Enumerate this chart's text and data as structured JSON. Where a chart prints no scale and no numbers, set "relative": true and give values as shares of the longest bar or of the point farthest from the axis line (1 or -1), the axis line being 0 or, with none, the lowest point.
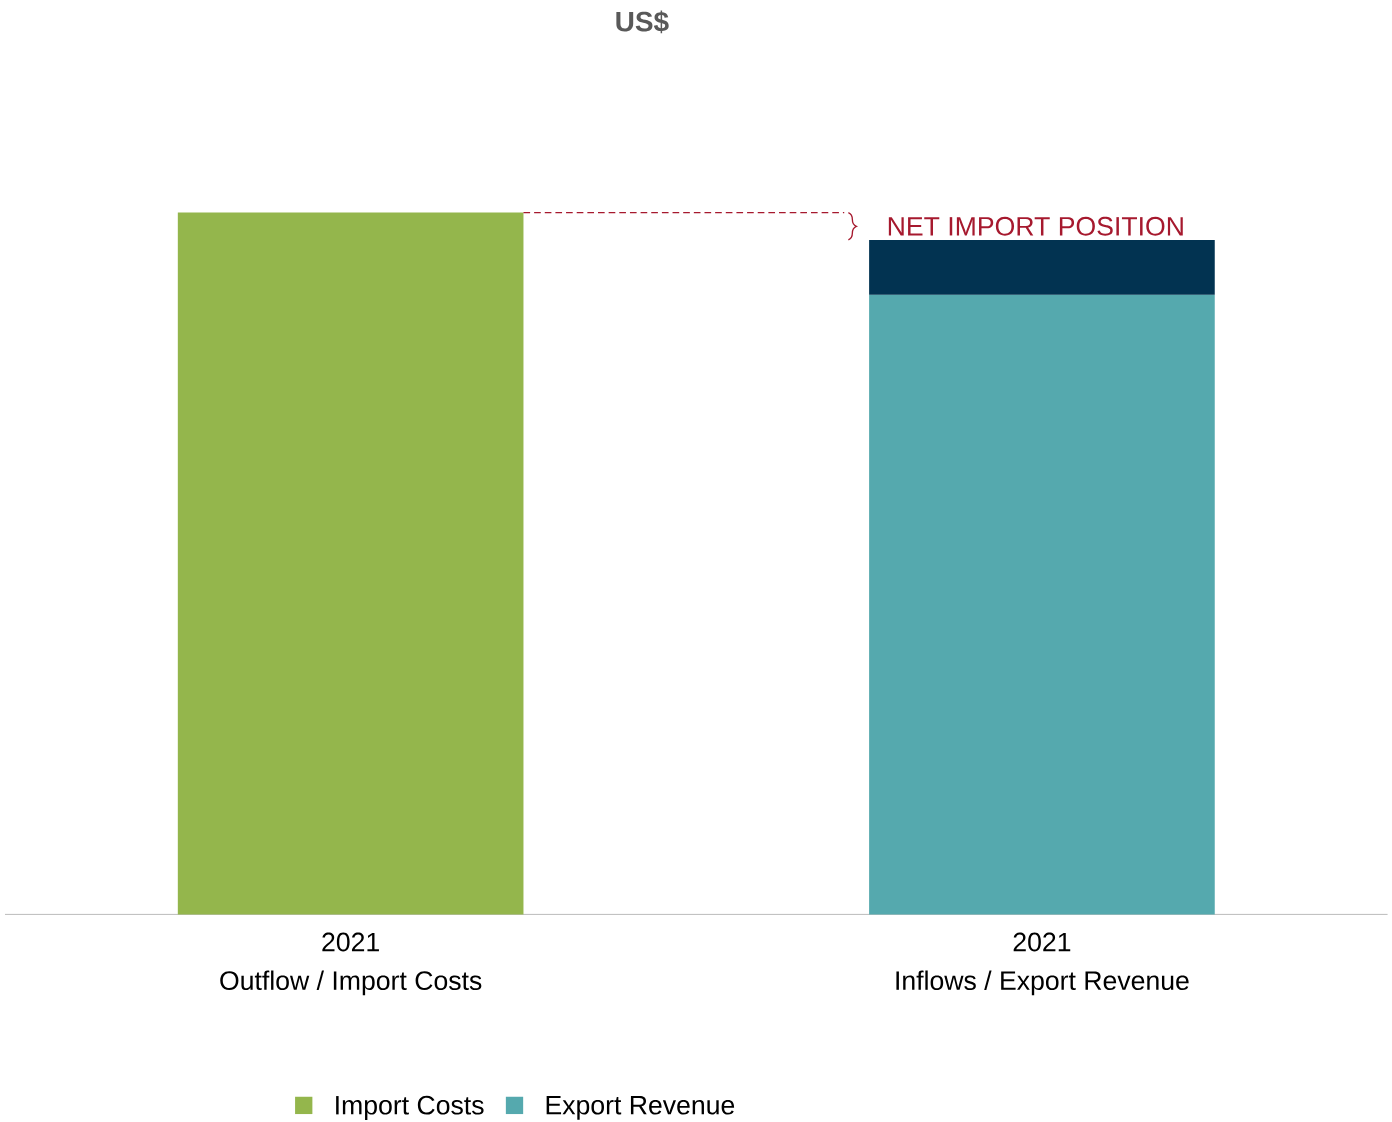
{
  "chart_data": {
    "type": "bar",
    "title": "US$",
    "relative": true,
    "stacked": true,
    "categories": [
      "2021\nOutflow / Import Costs",
      "2021\nInflows / Export Revenue"
    ],
    "series": [
      {
        "name": "Import Costs",
        "color": "#94b64c",
        "values": [
          1,
          null
        ]
      },
      {
        "name": "Export Revenue",
        "color": "#55a9ae",
        "values": [
          null,
          0.883
        ]
      },
      {
        "color": "#023351",
        "values": [
          null,
          0.078
        ]
      }
    ],
    "ref_lines": [
      {
        "axis": "y",
        "value": 1,
        "label": "NET IMPORT POSITION",
        "color": "#a6192e",
        "line_style": "dashed"
      }
    ],
    "legend": "bottom"
  }
}
